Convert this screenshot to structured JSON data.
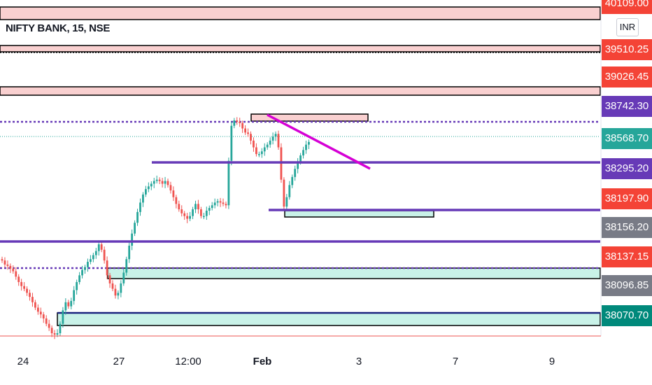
{
  "header": {
    "symbol_title": "NIFTY BANK, 15, NSE",
    "currency": "INR"
  },
  "colors": {
    "up": "#26a69a",
    "down": "#ef5350",
    "resistance_zone": "#f9d0d0",
    "support_zone": "#c9f2e8",
    "purple_line": "#673ab7",
    "trendline": "#d500d5"
  },
  "price_scale": [
    {
      "label": "40109.00",
      "color": "#f44336"
    },
    {
      "label": "39510.25",
      "color": "#f44336"
    },
    {
      "label": "39026.45",
      "color": "#f44336"
    },
    {
      "label": "38742.30",
      "color": "#673ab7"
    },
    {
      "label": "38568.70",
      "color": "#26a69a"
    },
    {
      "label": "38295.20",
      "color": "#673ab7"
    },
    {
      "label": "38197.90",
      "color": "#f44336"
    },
    {
      "label": "38156.20",
      "color": "#787b86"
    },
    {
      "label": "38137.15",
      "color": "#f44336"
    },
    {
      "label": "38096.85",
      "color": "#787b86"
    },
    {
      "label": "38070.70",
      "color": "#00897b"
    }
  ],
  "time_scale": [
    {
      "label": "24",
      "bold": false
    },
    {
      "label": "27",
      "bold": false
    },
    {
      "label": "12:00",
      "bold": false
    },
    {
      "label": "Feb",
      "bold": true
    },
    {
      "label": "3",
      "bold": false
    },
    {
      "label": "7",
      "bold": false
    },
    {
      "label": "9",
      "bold": false
    }
  ],
  "chart_data": {
    "type": "candlestick",
    "title": "NIFTY BANK, 15, NSE",
    "currency": "INR",
    "last_price": 38568.7,
    "close_series": [
      37680,
      37650,
      37640,
      37620,
      37600,
      37560,
      37520,
      37490,
      37470,
      37440,
      37410,
      37370,
      37330,
      37300,
      37280,
      37250,
      37210,
      37180,
      37140,
      37130,
      37140,
      37210,
      37310,
      37370,
      37340,
      37380,
      37460,
      37520,
      37570,
      37610,
      37630,
      37670,
      37690,
      37720,
      37750,
      37800,
      37760,
      37680,
      37570,
      37510,
      37470,
      37420,
      37440,
      37510,
      37590,
      37690,
      37790,
      37880,
      37960,
      38040,
      38110,
      38170,
      38210,
      38230,
      38250,
      38270,
      38280,
      38270,
      38250,
      38270,
      38240,
      38200,
      38150,
      38100,
      38060,
      38030,
      38010,
      37990,
      38010,
      38060,
      38100,
      38060,
      38010,
      38010,
      38050,
      38070,
      38090,
      38110,
      38120,
      38110,
      38100,
      38090,
      38420,
      38680,
      38720,
      38710,
      38700,
      38660,
      38630,
      38620,
      38570,
      38520,
      38470,
      38470,
      38490,
      38520,
      38540,
      38570,
      38600,
      38620,
      38520,
      38280,
      38080,
      38150,
      38240,
      38300,
      38360,
      38410,
      38460,
      38500,
      38540,
      38560
    ]
  }
}
